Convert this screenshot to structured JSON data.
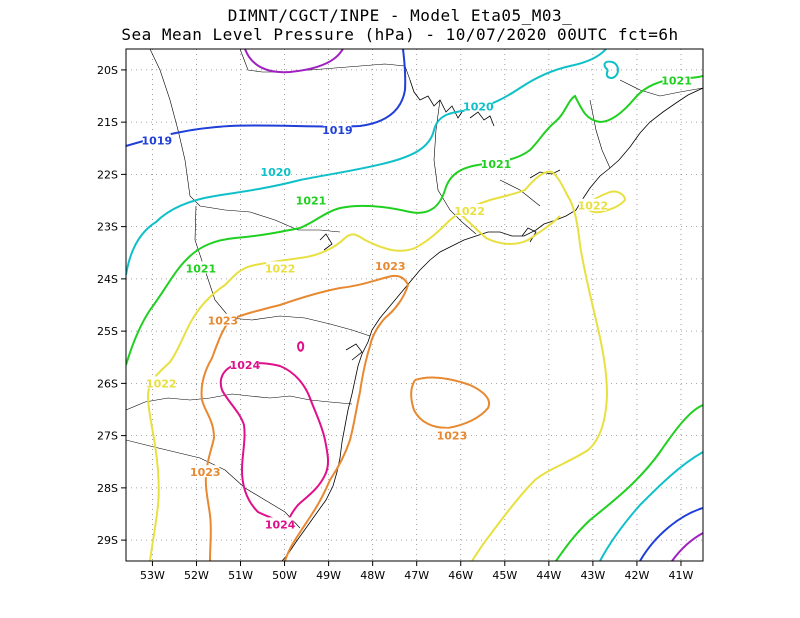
{
  "title_line1": "DIMNT/CGCT/INPE -  Model Eta05_M03_",
  "title_line2": "Sea Mean Level Pressure (hPa) - 10/07/2020 00UTC fct=6h",
  "map": {
    "variable": "Sea Mean Level Pressure",
    "unit": "hPa",
    "lon_range": [
      -53.6,
      -40.5
    ],
    "lat_range": [
      -29.4,
      -19.6
    ],
    "grid": true,
    "lon_ticks": [
      "53W",
      "52W",
      "51W",
      "50W",
      "49W",
      "48W",
      "47W",
      "46W",
      "45W",
      "44W",
      "43W",
      "42W",
      "41W"
    ],
    "lat_ticks": [
      "20S",
      "21S",
      "22S",
      "23S",
      "24S",
      "25S",
      "26S",
      "27S",
      "28S",
      "29S"
    ],
    "contour_colors": {
      "1019": "#1f3fd8",
      "1020": "#10c0c8",
      "1021": "#20d020",
      "1022": "#e8e040",
      "1023": "#e88830",
      "1024": "#e0108a",
      "1018": "#a020c0"
    },
    "contour_labels": [
      {
        "text": "1019",
        "level": "1019",
        "lon": -52.9,
        "lat": -21.35
      },
      {
        "text": "1019",
        "level": "1019",
        "lon": -48.8,
        "lat": -21.15
      },
      {
        "text": "1020",
        "level": "1020",
        "lon": -45.6,
        "lat": -20.7
      },
      {
        "text": "1020",
        "level": "1020",
        "lon": -50.2,
        "lat": -21.95
      },
      {
        "text": "1021",
        "level": "1021",
        "lon": -41.1,
        "lat": -20.2
      },
      {
        "text": "1021",
        "level": "1021",
        "lon": -45.2,
        "lat": -21.8
      },
      {
        "text": "1021",
        "level": "1021",
        "lon": -49.4,
        "lat": -22.5
      },
      {
        "text": "1021",
        "level": "1021",
        "lon": -51.9,
        "lat": -23.8
      },
      {
        "text": "1022",
        "level": "1022",
        "lon": -45.8,
        "lat": -22.7
      },
      {
        "text": "1022",
        "level": "1022",
        "lon": -43.0,
        "lat": -22.6
      },
      {
        "text": "1022",
        "level": "1022",
        "lon": -50.1,
        "lat": -23.8
      },
      {
        "text": "1022",
        "level": "1022",
        "lon": -52.8,
        "lat": -26.0
      },
      {
        "text": "1023",
        "level": "1023",
        "lon": -47.6,
        "lat": -23.75
      },
      {
        "text": "1023",
        "level": "1023",
        "lon": -51.4,
        "lat": -24.8
      },
      {
        "text": "1023",
        "level": "1023",
        "lon": -46.2,
        "lat": -27.0
      },
      {
        "text": "1023",
        "level": "1023",
        "lon": -51.8,
        "lat": -27.7
      },
      {
        "text": "1024",
        "level": "1024",
        "lon": -50.9,
        "lat": -25.65
      },
      {
        "text": "1024",
        "level": "1024",
        "lon": -50.1,
        "lat": -28.7
      }
    ]
  }
}
